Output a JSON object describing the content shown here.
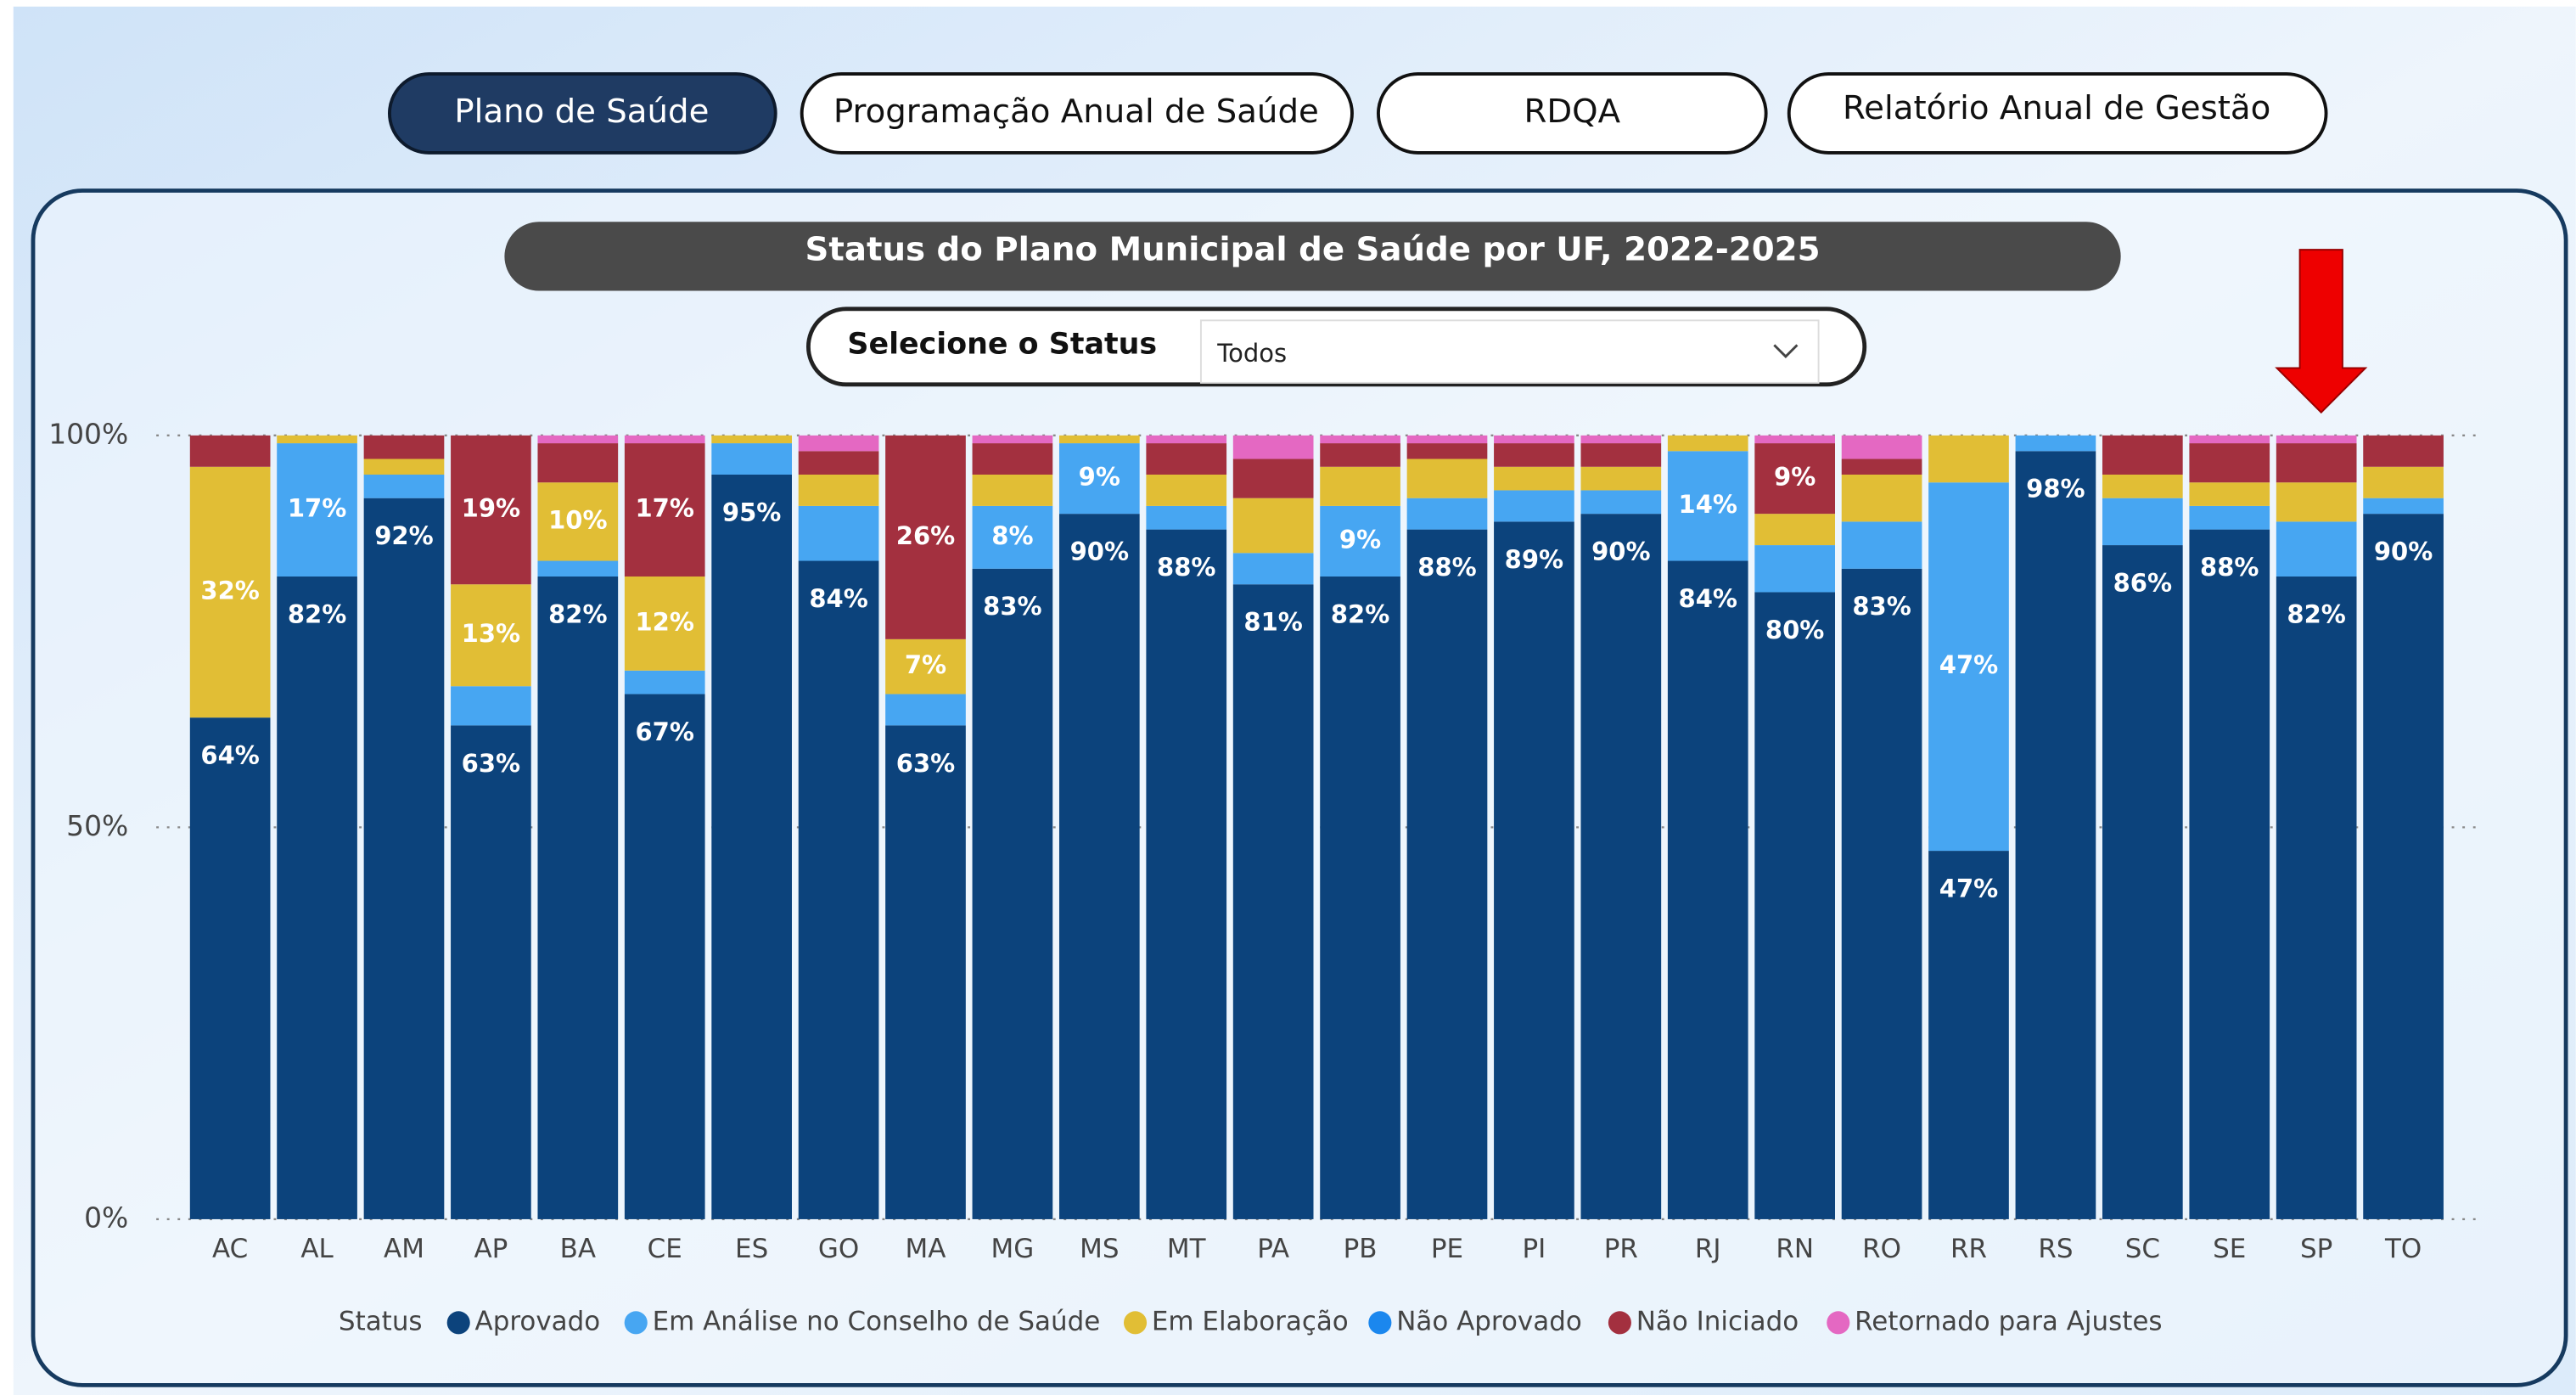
{
  "tabs": [
    "Plano de Saúde",
    "Programação Anual de Saúde",
    "RDQA",
    "Relatório Anual de Gestão"
  ],
  "chart_data": {
    "type": "stacked_bar",
    "title": "Status do Plano Municipal de Saúde por UF, 2022-2025",
    "filter": {
      "label": "Selecione o Status",
      "value": "Todos"
    },
    "legend_title": "Status",
    "categories": [
      "AC",
      "AL",
      "AM",
      "AP",
      "BA",
      "CE",
      "ES",
      "GO",
      "MA",
      "MG",
      "MS",
      "MT",
      "PA",
      "PB",
      "PE",
      "PI",
      "PR",
      "RJ",
      "RN",
      "RO",
      "RR",
      "RS",
      "SC",
      "SE",
      "SP",
      "TO"
    ],
    "ylim": [
      0,
      100
    ],
    "yticks": [
      {
        "value": 0,
        "label": "0%"
      },
      {
        "value": 50,
        "label": "50%"
      },
      {
        "value": 100,
        "label": "100%"
      }
    ],
    "grid": true,
    "series": [
      {
        "name": "Aprovado",
        "color": "#0c437c",
        "values": [
          64,
          82,
          92,
          63,
          82,
          67,
          95,
          84,
          63,
          83,
          90,
          88,
          81,
          82,
          88,
          89,
          90,
          84,
          80,
          83,
          47,
          98,
          86,
          88,
          82,
          90
        ],
        "value_labels": [
          "64%",
          "82%",
          "92%",
          "63%",
          "82%",
          "67%",
          "95%",
          "84%",
          "63%",
          "83%",
          "90%",
          "88%",
          "81%",
          "82%",
          "88%",
          "89%",
          "90%",
          "84%",
          "80%",
          "83%",
          "47%",
          "98%",
          "86%",
          "88%",
          "82%",
          "90%"
        ]
      },
      {
        "name": "Em Análise no Conselho de Saúde",
        "color": "#47a6f2",
        "values": [
          0,
          17,
          3,
          5,
          2,
          3,
          4,
          7,
          4,
          8,
          9,
          3,
          4,
          9,
          4,
          4,
          3,
          14,
          6,
          6,
          47,
          2,
          6,
          3,
          7,
          2
        ],
        "value_labels": [
          null,
          "17%",
          null,
          null,
          null,
          null,
          null,
          null,
          null,
          "8%",
          "9%",
          null,
          null,
          "9%",
          null,
          null,
          null,
          "14%",
          null,
          null,
          "47%",
          null,
          null,
          null,
          null,
          null
        ]
      },
      {
        "name": "Em Elaboração",
        "color": "#e1be35",
        "values": [
          32,
          1,
          2,
          13,
          10,
          12,
          1,
          4,
          7,
          4,
          1,
          4,
          7,
          5,
          5,
          3,
          3,
          2,
          4,
          6,
          6,
          0,
          3,
          3,
          5,
          4
        ],
        "value_labels": [
          "32%",
          null,
          null,
          "13%",
          "10%",
          "12%",
          null,
          null,
          "7%",
          null,
          null,
          null,
          null,
          null,
          null,
          null,
          null,
          null,
          null,
          null,
          null,
          null,
          null,
          null,
          null,
          null
        ]
      },
      {
        "name": "Não Aprovado",
        "color": "#1b87ee",
        "values": [
          0,
          0,
          0,
          0,
          0,
          0,
          0,
          0,
          0,
          0,
          0,
          0,
          0,
          0,
          0,
          0,
          0,
          0,
          0,
          0,
          0,
          0,
          0,
          0,
          0,
          0
        ],
        "value_labels": [
          null,
          null,
          null,
          null,
          null,
          null,
          null,
          null,
          null,
          null,
          null,
          null,
          null,
          null,
          null,
          null,
          null,
          null,
          null,
          null,
          null,
          null,
          null,
          null,
          null,
          null
        ]
      },
      {
        "name": "Não Iniciado",
        "color": "#a3303f",
        "values": [
          4,
          0,
          3,
          19,
          5,
          17,
          0,
          3,
          26,
          4,
          0,
          4,
          5,
          3,
          2,
          3,
          3,
          0,
          9,
          2,
          0,
          0,
          5,
          5,
          5,
          4
        ],
        "value_labels": [
          null,
          null,
          null,
          "19%",
          null,
          "17%",
          null,
          null,
          "26%",
          null,
          null,
          null,
          null,
          null,
          null,
          null,
          null,
          null,
          "9%",
          null,
          null,
          null,
          null,
          null,
          null,
          null
        ]
      },
      {
        "name": "Retornado para Ajustes",
        "color": "#e468c2",
        "values": [
          0,
          0,
          0,
          0,
          1,
          1,
          0,
          2,
          0,
          1,
          0,
          1,
          3,
          1,
          1,
          1,
          1,
          0,
          1,
          3,
          0,
          0,
          0,
          1,
          1,
          0
        ],
        "value_labels": [
          null,
          null,
          null,
          null,
          null,
          null,
          null,
          null,
          null,
          null,
          null,
          null,
          null,
          null,
          null,
          null,
          null,
          null,
          null,
          null,
          null,
          null,
          null,
          null,
          null,
          null
        ]
      }
    ]
  }
}
